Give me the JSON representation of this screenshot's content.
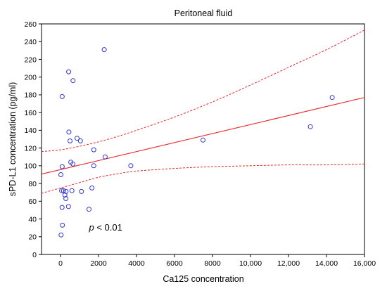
{
  "chart_data": {
    "type": "scatter",
    "title": "Peritoneal fluid",
    "xlabel": "Ca125 concentration",
    "ylabel": "sPD-L1 concentration (pg/ml)",
    "xlim": [
      -1000,
      16000
    ],
    "ylim": [
      0,
      260
    ],
    "x_ticks": [
      0,
      2000,
      4000,
      6000,
      8000,
      10000,
      12000,
      14000,
      16000
    ],
    "x_tick_labels": [
      "0",
      "2000",
      "4000",
      "6000",
      "8000",
      "10,000",
      "12,000",
      "14,000",
      "16,000"
    ],
    "y_ticks": [
      0,
      20,
      40,
      60,
      80,
      100,
      120,
      140,
      160,
      180,
      200,
      220,
      240,
      260
    ],
    "y_tick_labels": [
      "0",
      "20",
      "40",
      "60",
      "80",
      "100",
      "120",
      "140",
      "160",
      "180",
      "200",
      "220",
      "240",
      "260"
    ],
    "grid": false,
    "annotation": {
      "italic_part": "p",
      "rest": " < 0.01",
      "x": 1500,
      "y": 27
    },
    "marker_color": "#3333cc",
    "line_color": "#e8262a",
    "series": [
      {
        "points": [
          {
            "x": 30,
            "y": 22
          },
          {
            "x": 100,
            "y": 33
          },
          {
            "x": 80,
            "y": 53
          },
          {
            "x": 420,
            "y": 54
          },
          {
            "x": 280,
            "y": 63
          },
          {
            "x": 230,
            "y": 67
          },
          {
            "x": 60,
            "y": 72
          },
          {
            "x": 160,
            "y": 72
          },
          {
            "x": 290,
            "y": 71
          },
          {
            "x": 600,
            "y": 72
          },
          {
            "x": 1100,
            "y": 71
          },
          {
            "x": 1650,
            "y": 75
          },
          {
            "x": 1500,
            "y": 51
          },
          {
            "x": 20,
            "y": 90
          },
          {
            "x": 90,
            "y": 99
          },
          {
            "x": 540,
            "y": 104
          },
          {
            "x": 650,
            "y": 102
          },
          {
            "x": 1750,
            "y": 100
          },
          {
            "x": 2350,
            "y": 110
          },
          {
            "x": 3700,
            "y": 100
          },
          {
            "x": 500,
            "y": 128
          },
          {
            "x": 870,
            "y": 131
          },
          {
            "x": 1050,
            "y": 128
          },
          {
            "x": 440,
            "y": 138
          },
          {
            "x": 1750,
            "y": 118
          },
          {
            "x": 90,
            "y": 178
          },
          {
            "x": 660,
            "y": 196
          },
          {
            "x": 430,
            "y": 206
          },
          {
            "x": 2300,
            "y": 231
          },
          {
            "x": 7500,
            "y": 129
          },
          {
            "x": 13150,
            "y": 144
          },
          {
            "x": 14300,
            "y": 177
          }
        ]
      }
    ],
    "regression": {
      "intercept": 95.7,
      "slope": 0.00508
    },
    "confidence_upper": [
      {
        "x": -1000,
        "y": 116
      },
      {
        "x": 0,
        "y": 118
      },
      {
        "x": 1000,
        "y": 122
      },
      {
        "x": 2000,
        "y": 127
      },
      {
        "x": 3000,
        "y": 133
      },
      {
        "x": 4000,
        "y": 140
      },
      {
        "x": 6000,
        "y": 155
      },
      {
        "x": 8000,
        "y": 172
      },
      {
        "x": 10000,
        "y": 191
      },
      {
        "x": 12000,
        "y": 211
      },
      {
        "x": 14000,
        "y": 231
      },
      {
        "x": 16000,
        "y": 253
      }
    ],
    "confidence_lower": [
      {
        "x": -1000,
        "y": 69
      },
      {
        "x": 0,
        "y": 75
      },
      {
        "x": 1000,
        "y": 81
      },
      {
        "x": 2000,
        "y": 87
      },
      {
        "x": 3000,
        "y": 91
      },
      {
        "x": 4000,
        "y": 94
      },
      {
        "x": 6000,
        "y": 97
      },
      {
        "x": 8000,
        "y": 99
      },
      {
        "x": 10000,
        "y": 100
      },
      {
        "x": 12000,
        "y": 101
      },
      {
        "x": 14000,
        "y": 101
      },
      {
        "x": 16000,
        "y": 102
      }
    ]
  }
}
